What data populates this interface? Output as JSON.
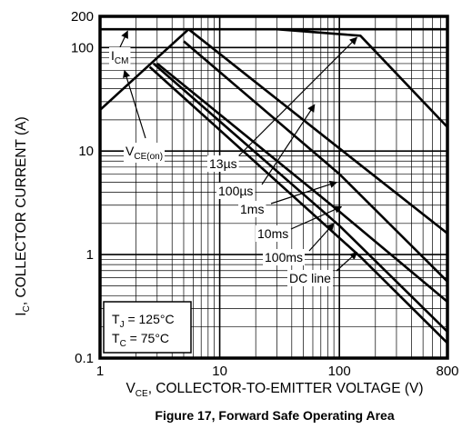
{
  "chart_data": {
    "type": "line",
    "title": "Figure 17, Forward Safe Operating Area",
    "xscale": "log",
    "yscale": "log",
    "xlim": [
      1,
      800
    ],
    "ylim": [
      0.1,
      200
    ],
    "grid": true,
    "x_ticks": [
      "1",
      "10",
      "100",
      "800"
    ],
    "y_ticks": [
      "200",
      "100",
      "10",
      "1",
      "0.1"
    ],
    "xlabel": {
      "main": "V",
      "sub": "CE",
      "rest": ", COLLECTOR-TO-EMITTER VOLTAGE (V)"
    },
    "ylabel": {
      "main": "I",
      "sub": "C",
      "rest": ", COLLECTOR CURRENT (A)"
    },
    "conditions": [
      {
        "main": "T",
        "sub": "J",
        "rest": " = 125°C"
      },
      {
        "main": "T",
        "sub": "C",
        "rest": " = 75°C"
      }
    ],
    "series": [
      {
        "name": "I_CM",
        "label": {
          "main": "I",
          "sub": "CM"
        },
        "points": [
          [
            1,
            150
          ],
          [
            800,
            150
          ]
        ]
      },
      {
        "name": "V_CE(on)",
        "label": {
          "main": "V",
          "sub": "CE(on)"
        },
        "points": [
          [
            1,
            25
          ],
          [
            5.5,
            150
          ]
        ]
      },
      {
        "name": "13µs",
        "label": "13µs",
        "points": [
          [
            30,
            150
          ],
          [
            150,
            130
          ],
          [
            800,
            17
          ]
        ]
      },
      {
        "name": "100µs",
        "label": "100µs",
        "points": [
          [
            5.5,
            150
          ],
          [
            80,
            13
          ],
          [
            800,
            1.6
          ]
        ]
      },
      {
        "name": "1ms",
        "label": "1ms",
        "points": [
          [
            5,
            115
          ],
          [
            100,
            6
          ],
          [
            800,
            0.55
          ]
        ]
      },
      {
        "name": "10ms",
        "label": "10ms",
        "points": [
          [
            3,
            70
          ],
          [
            100,
            2.6
          ],
          [
            800,
            0.35
          ]
        ]
      },
      {
        "name": "100ms",
        "label": "100ms",
        "points": [
          [
            2.8,
            70
          ],
          [
            100,
            1.9
          ],
          [
            800,
            0.18
          ]
        ]
      },
      {
        "name": "DC line",
        "label": "DC line",
        "points": [
          [
            2.6,
            65
          ],
          [
            150,
            0.95
          ],
          [
            800,
            0.14
          ]
        ]
      }
    ]
  }
}
